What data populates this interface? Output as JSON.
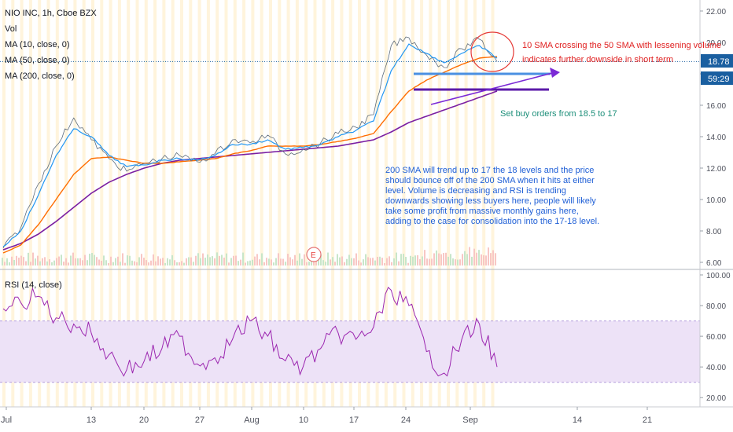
{
  "legend": {
    "title": "NIO INC, 1h, Cboe BZX",
    "vol": "Vol",
    "ma10": "MA (10, close, 0)",
    "ma50": "MA (50, close, 0)",
    "ma200": "MA (200, close, 0)",
    "rsi": "RSI (14, close)"
  },
  "price_axis": {
    "ticks": [
      "22.00",
      "20.00",
      "18.00",
      "16.00",
      "14.00",
      "12.00",
      "10.00",
      "8.00",
      "6.00"
    ],
    "last_price": "18.78",
    "countdown": "59:29"
  },
  "rsi_axis": {
    "ticks": [
      "100.00",
      "80.00",
      "60.00",
      "40.00",
      "20.00"
    ]
  },
  "time_axis": {
    "ticks": [
      "Jul",
      "13",
      "20",
      "27",
      "Aug",
      "10",
      "17",
      "24",
      "Sep",
      "14",
      "21"
    ]
  },
  "earnings_marker": "E",
  "annotations": {
    "sma_cross": [
      "10 SMA crossing the 50 SMA with lessening volume",
      "indicates further downside in short term"
    ],
    "buy_orders": "Set buy orders from 18.5 to 17",
    "analysis": [
      "200 SMA will trend up to 17 the 18 levels and the price",
      "should bounce off of the 200 SMA when it hits at either",
      "level. Volume is decreasing and RSI is trending",
      "downwards showing less buyers here, people will likely",
      "take some profit from massive monthly gains here,",
      "adding to the case for consolidation into the 17-18 level."
    ]
  },
  "colors": {
    "ma10": "#2196f3",
    "ma50": "#ff6d00",
    "ma200": "#7b1fa2",
    "price_line": "#1a5fa0",
    "rsi_line": "#9c27b0",
    "rsi_band": "#ede2f7",
    "annotation_red": "#e02020",
    "annotation_teal": "#1e8f7a",
    "annotation_blue": "#1f5fd6",
    "level_blue": "#4a90e2",
    "level_purple": "#5b1aa8",
    "arrow_purple": "#7b2ad6"
  },
  "chart_data": {
    "type": "line",
    "title": "NIO INC, 1h, Cboe BZX",
    "price_ylim": [
      5.8,
      22.4
    ],
    "rsi_ylim": [
      15,
      100
    ],
    "rsi_band": [
      30,
      70
    ],
    "levels": [
      18,
      17
    ],
    "x_categories": [
      "Jul",
      "13",
      "20",
      "27",
      "Aug",
      "10",
      "17",
      "24",
      "Sep"
    ],
    "price_close": [
      6.9,
      8.2,
      11.0,
      13.4,
      15.2,
      13.8,
      12.6,
      11.8,
      12.3,
      12.6,
      12.8,
      12.4,
      12.9,
      13.8,
      13.6,
      14.1,
      12.9,
      13.2,
      13.6,
      14.2,
      14.6,
      15.4,
      19.8,
      20.3,
      19.2,
      18.4,
      19.6,
      20.2,
      18.78
    ],
    "ma10": [
      7.0,
      8.0,
      10.3,
      12.8,
      14.5,
      14.0,
      12.8,
      12.1,
      12.2,
      12.5,
      12.6,
      12.5,
      12.8,
      13.5,
      13.5,
      13.8,
      13.2,
      13.3,
      13.5,
      14.0,
      14.4,
      15.0,
      18.2,
      19.9,
      19.3,
      18.7,
      19.3,
      19.8,
      19.0
    ],
    "ma50": [
      6.6,
      7.1,
      8.4,
      10.0,
      11.6,
      12.6,
      12.7,
      12.5,
      12.3,
      12.3,
      12.4,
      12.5,
      12.6,
      12.9,
      13.1,
      13.4,
      13.4,
      13.4,
      13.5,
      13.7,
      13.9,
      14.2,
      15.6,
      16.9,
      17.6,
      18.1,
      18.6,
      19.0,
      19.1
    ],
    "ma200": [
      6.8,
      7.2,
      7.8,
      8.6,
      9.5,
      10.4,
      11.1,
      11.6,
      12.0,
      12.3,
      12.5,
      12.6,
      12.7,
      12.8,
      12.9,
      13.0,
      13.1,
      13.2,
      13.3,
      13.4,
      13.6,
      13.8,
      14.3,
      14.9,
      15.3,
      15.7,
      16.1,
      16.5,
      16.9
    ],
    "rsi": [
      78,
      82,
      86,
      72,
      68,
      62,
      48,
      38,
      44,
      52,
      60,
      42,
      46,
      58,
      70,
      60,
      44,
      40,
      52,
      62,
      58,
      66,
      90,
      80,
      50,
      36,
      58,
      68,
      40
    ]
  }
}
